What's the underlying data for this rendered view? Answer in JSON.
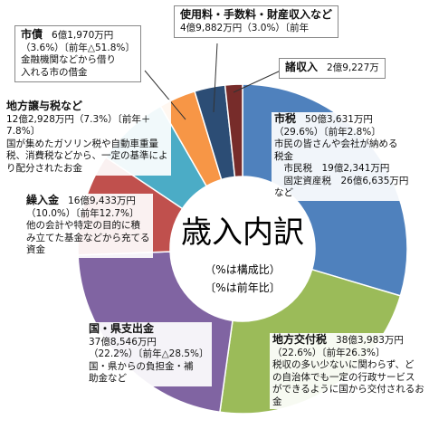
{
  "chart_data": {
    "type": "donut",
    "center_title": "歳入内訳",
    "center_notes": [
      "（%は構成比）",
      "〔%は前年比〕"
    ],
    "categories": [
      "市税",
      "地方交付税",
      "国・県支出金",
      "繰入金",
      "地方譲与税など",
      "市債",
      "使用料・手数料・財産収入など",
      "諸収入"
    ],
    "values": [
      29.6,
      22.6,
      22.2,
      10.0,
      7.3,
      3.6,
      3.0,
      1.7
    ],
    "colors": [
      "#4f81bd",
      "#9bbb59",
      "#8064a2",
      "#c0504d",
      "#4bacc6",
      "#f79646",
      "#2c4d75",
      "#772c2a"
    ],
    "labels": [
      [
        "50億3,631万円",
        "（29.6%）〔前年2.8%〕",
        "市民の皆さんや会社が納める",
        "税金",
        "　市民税　19億2,341万円",
        "　固定資産税　26億6,635万円",
        "など"
      ],
      [
        "38億3,983万円",
        "（22.6%）〔前年26.3%〕",
        "税収の多い少ないに関わらず、ど",
        "の自治体でも一定の行政サービス",
        "ができるように国から交付されるお",
        "金"
      ],
      [
        "37億8,546万円",
        "（22.2%）〔前年△28.5%〕",
        "国・県からの負担金・補",
        "助金など"
      ],
      [
        "16億9,433万円",
        "（10.0%）〔前年12.7%〕",
        "他の会計や特定の目的に積",
        "み立てた基金などから充てる",
        "資金"
      ],
      [
        "12億2,928万円（7.3%）〔前年＋",
        "7.8%〕",
        "国が集めたガソリン税や自動車重量",
        "税、消費税などから、一定の基準によ",
        "り配分されたお金"
      ],
      [
        "6億1,970万円",
        "（3.6%）〔前年△51.8%〕",
        "金融機関などから借り",
        "入れる市の借金"
      ],
      [
        "4億9,882万円（3.0%）〔前年"
      ],
      [
        "2億9,227万"
      ]
    ]
  }
}
